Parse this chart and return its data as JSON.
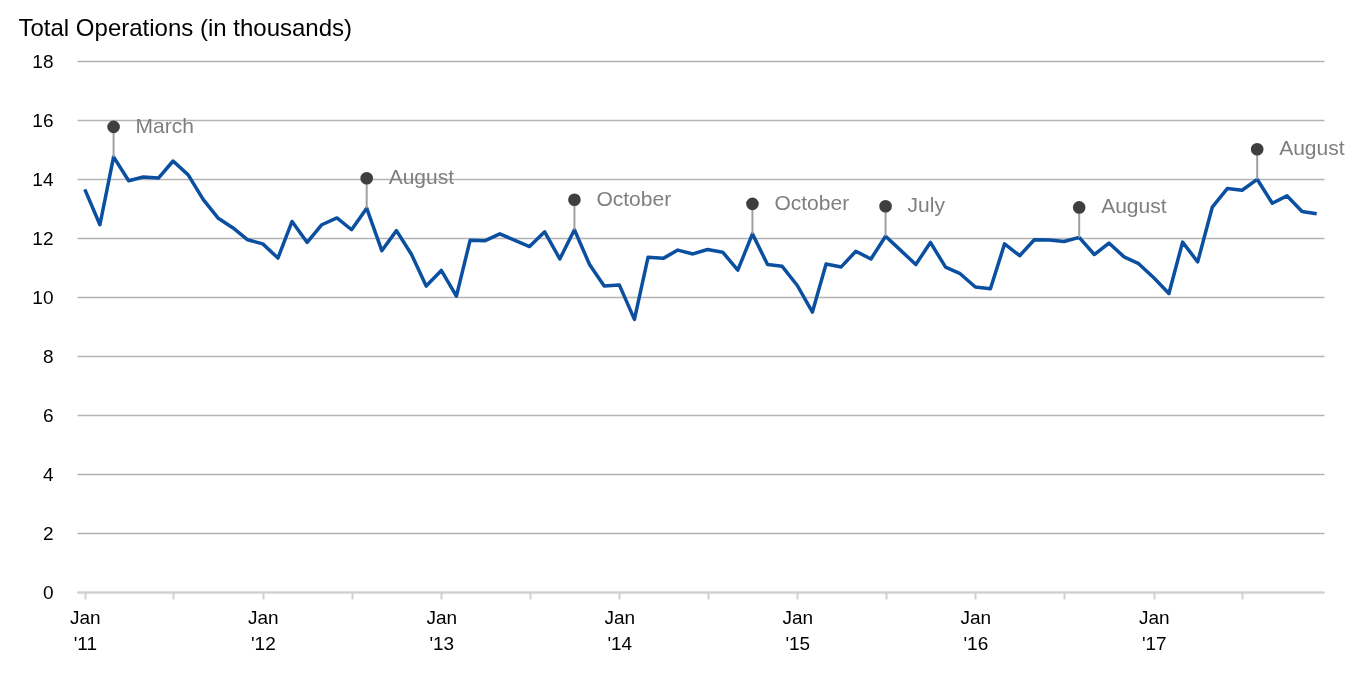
{
  "chart_data": {
    "type": "line",
    "ylabel": "Total Operations (in thousands)",
    "x": [
      "2011-01",
      "2011-02",
      "2011-03",
      "2011-04",
      "2011-05",
      "2011-06",
      "2011-07",
      "2011-08",
      "2011-09",
      "2011-10",
      "2011-11",
      "2011-12",
      "2012-01",
      "2012-02",
      "2012-03",
      "2012-04",
      "2012-05",
      "2012-06",
      "2012-07",
      "2012-08",
      "2012-09",
      "2012-10",
      "2012-11",
      "2012-12",
      "2013-01",
      "2013-02",
      "2013-03",
      "2013-04",
      "2013-05",
      "2013-06",
      "2013-07",
      "2013-08",
      "2013-09",
      "2013-10",
      "2013-11",
      "2013-12",
      "2014-01",
      "2014-02",
      "2014-03",
      "2014-04",
      "2014-05",
      "2014-06",
      "2014-07",
      "2014-08",
      "2014-09",
      "2014-10",
      "2014-11",
      "2014-12",
      "2015-01",
      "2015-02",
      "2015-03",
      "2015-04",
      "2015-05",
      "2015-06",
      "2015-07",
      "2015-08",
      "2015-09",
      "2015-10",
      "2015-11",
      "2015-12",
      "2016-01",
      "2016-02",
      "2016-03",
      "2016-04",
      "2016-05",
      "2016-06",
      "2016-07",
      "2016-08",
      "2016-09",
      "2016-10",
      "2016-11",
      "2016-12",
      "2017-01",
      "2017-02",
      "2017-03",
      "2017-04",
      "2017-05",
      "2017-06",
      "2017-07",
      "2017-08",
      "2017-09",
      "2017-10",
      "2017-11",
      "2017-12"
    ],
    "series": [
      {
        "color": "#0b4fa1",
        "values": [
          13.65,
          12.45,
          14.75,
          13.94,
          14.07,
          14.03,
          14.61,
          14.14,
          13.3,
          12.68,
          12.34,
          11.94,
          11.8,
          11.32,
          12.56,
          11.85,
          12.45,
          12.68,
          12.28,
          13.01,
          11.57,
          12.25,
          11.44,
          10.37,
          10.9,
          10.03,
          11.92,
          11.91,
          12.14,
          11.92,
          11.71,
          12.21,
          11.29,
          12.28,
          11.1,
          10.37,
          10.41,
          9.24,
          11.35,
          11.31,
          11.59,
          11.46,
          11.61,
          11.52,
          10.91,
          12.14,
          11.1,
          11.04,
          10.39,
          9.49,
          11.12,
          11.02,
          11.55,
          11.29,
          12.06,
          11.58,
          11.1,
          11.85,
          11.01,
          10.79,
          10.34,
          10.28,
          11.8,
          11.4,
          11.94,
          11.93,
          11.88,
          12.02,
          11.44,
          11.83,
          11.36,
          11.13,
          10.65,
          10.12,
          11.86,
          11.19,
          13.05,
          13.68,
          13.62,
          13.99,
          13.18,
          13.43,
          12.9,
          12.82
        ]
      }
    ],
    "xlim": [
      "2010-12-16",
      "2017-12-16"
    ],
    "xticks": [
      {
        "value": "2011-01",
        "label": "Jan '11"
      },
      {
        "value": "2011-07",
        "label": null
      },
      {
        "value": "2012-01",
        "label": "Jan '12"
      },
      {
        "value": "2012-07",
        "label": null
      },
      {
        "value": "2013-01",
        "label": "Jan '13"
      },
      {
        "value": "2013-07",
        "label": null
      },
      {
        "value": "2014-01",
        "label": "Jan '14"
      },
      {
        "value": "2014-07",
        "label": null
      },
      {
        "value": "2015-01",
        "label": "Jan '15"
      },
      {
        "value": "2015-07",
        "label": null
      },
      {
        "value": "2016-01",
        "label": "Jan '16"
      },
      {
        "value": "2016-07",
        "label": null
      },
      {
        "value": "2017-01",
        "label": "Jan '17"
      },
      {
        "value": "2017-07",
        "label": null
      }
    ],
    "ylim": [
      0,
      18
    ],
    "yticks": [
      0,
      2,
      4,
      6,
      8,
      10,
      12,
      14,
      16,
      18
    ],
    "grid": "y",
    "legend": false,
    "annotations": [
      {
        "text": "March",
        "x": "2011-03",
        "y": 14.75
      },
      {
        "text": "August",
        "x": "2012-08",
        "y": 13.01
      },
      {
        "text": "October",
        "x": "2013-10",
        "y": 12.28
      },
      {
        "text": "October",
        "x": "2014-10",
        "y": 12.14
      },
      {
        "text": "July",
        "x": "2015-07",
        "y": 12.06
      },
      {
        "text": "August",
        "x": "2016-08",
        "y": 12.02
      },
      {
        "text": "August",
        "x": "2017-08",
        "y": 13.99
      }
    ]
  }
}
